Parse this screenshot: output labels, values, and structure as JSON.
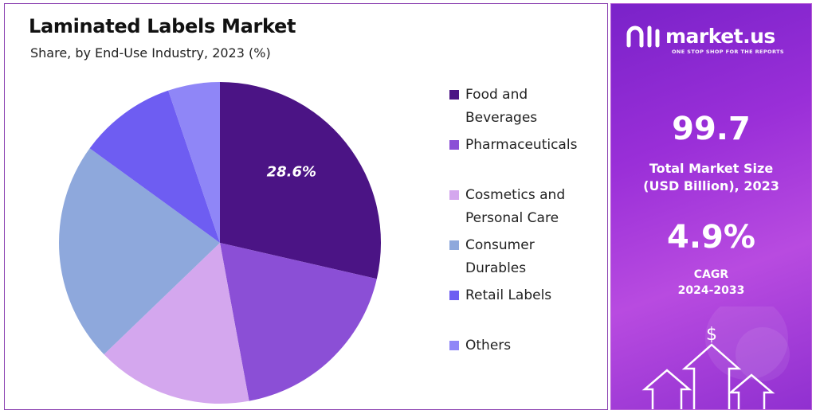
{
  "chart_data": {
    "type": "pie",
    "title": "Laminated Labels Market",
    "subtitle": "Share, by End-Use Industry, 2023 (%)",
    "slices": [
      {
        "label": "Food and Beverages",
        "value": 28.6,
        "color": "#4b1485",
        "show_label": true,
        "data_label": "28.6%"
      },
      {
        "label": "Pharmaceuticals",
        "value": 18.5,
        "color": "#8b4fd6",
        "show_label": false
      },
      {
        "label": "Cosmetics and Personal Care",
        "value": 15.7,
        "color": "#d4a7ee",
        "show_label": false
      },
      {
        "label": "Consumer Durables",
        "value": 22.2,
        "color": "#8ea8dc",
        "show_label": false
      },
      {
        "label": "Retail Labels",
        "value": 9.8,
        "color": "#6e5df2",
        "show_label": false
      },
      {
        "label": "Others",
        "value": 5.2,
        "color": "#8f86f7",
        "show_label": false
      }
    ]
  },
  "legend": [
    {
      "line1": "Food and",
      "line2": "Beverages",
      "color": "#4b1485"
    },
    {
      "line1": "Pharmaceuticals",
      "line2": "",
      "color": "#8b4fd6"
    },
    {
      "line1": "Cosmetics and",
      "line2": "Personal Care",
      "color": "#d4a7ee"
    },
    {
      "line1": "Consumer",
      "line2": "Durables",
      "color": "#8ea8dc"
    },
    {
      "line1": "Retail Labels",
      "line2": "",
      "color": "#6e5df2"
    },
    {
      "line1": "Others",
      "line2": "",
      "color": "#8f86f7"
    }
  ],
  "brand": {
    "name": "market.us",
    "tagline": "ONE STOP SHOP FOR THE REPORTS"
  },
  "stats": {
    "market_size_value": "99.7",
    "market_size_label_1": "Total Market Size",
    "market_size_label_2": "(USD Billion), 2023",
    "cagr_value": "4.9%",
    "cagr_label_1": "CAGR",
    "cagr_label_2": "2024-2033"
  }
}
